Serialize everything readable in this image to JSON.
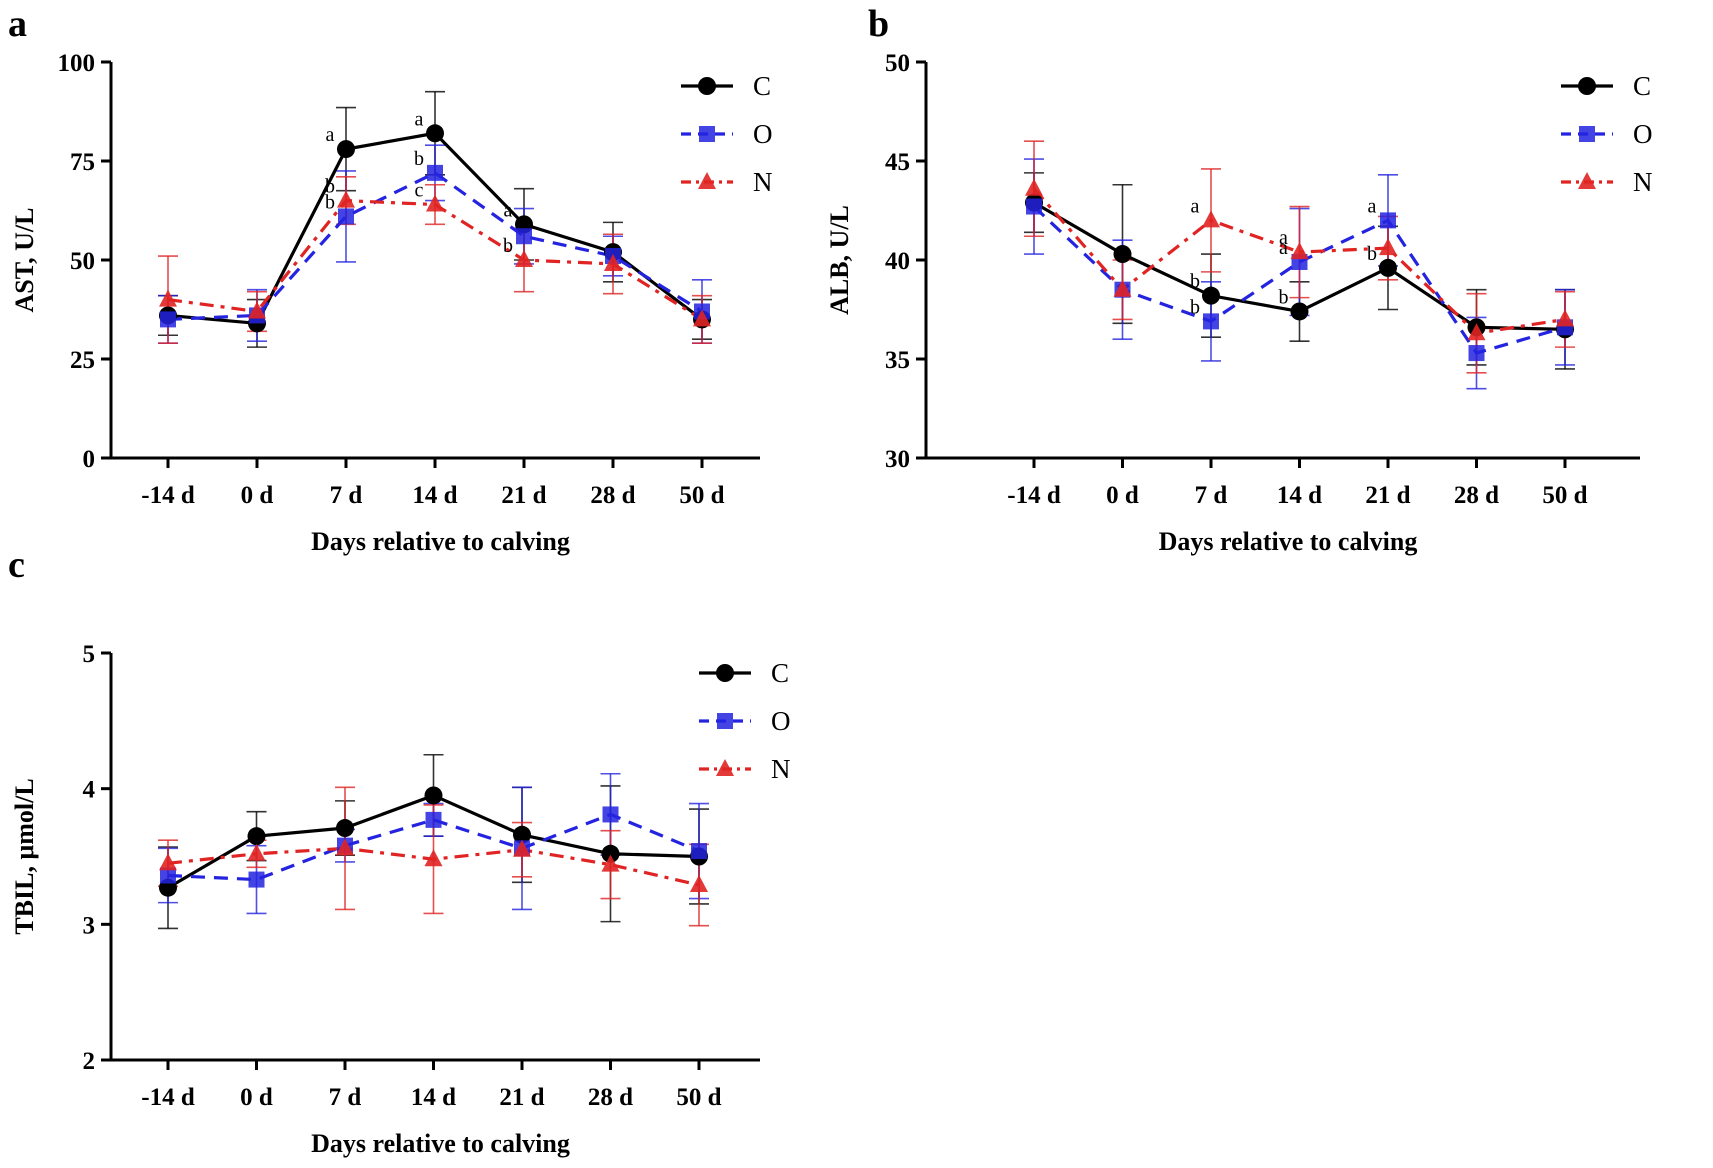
{
  "chart_data": [
    {
      "panel": "a",
      "type": "line",
      "title": "",
      "xlabel": "Days relative to calving",
      "ylabel": "AST, U/L",
      "categories": [
        "-14 d",
        "0 d",
        "7 d",
        "14 d",
        "21 d",
        "28 d",
        "50 d"
      ],
      "ylim": [
        0,
        100
      ],
      "yticks": [
        0,
        25,
        50,
        75,
        100
      ],
      "grid": false,
      "legend": "top-right",
      "series": [
        {
          "name": "C",
          "color": "#000000",
          "dash": "solid",
          "marker": "circle",
          "values": [
            36,
            34,
            78,
            82,
            59,
            52,
            35
          ],
          "errors": [
            5,
            6,
            10.5,
            10.5,
            9,
            7.5,
            5
          ]
        },
        {
          "name": "O",
          "color": "#2323e0",
          "dash": "dash",
          "marker": "square",
          "values": [
            35,
            36,
            61,
            72,
            56,
            51,
            37
          ],
          "errors": [
            6,
            6.5,
            11.5,
            7,
            7,
            5,
            8
          ]
        },
        {
          "name": "N",
          "color": "#e02323",
          "dash": "dashdot",
          "marker": "triangle",
          "values": [
            40,
            37,
            65,
            64,
            50,
            49,
            35
          ],
          "errors": [
            11,
            5,
            6,
            5,
            8,
            7.5,
            6
          ]
        }
      ],
      "annotations": [
        {
          "text": "a",
          "x": 2,
          "y": 78,
          "series": "C"
        },
        {
          "text": "b",
          "x": 2,
          "y": 65,
          "series": "N"
        },
        {
          "text": "b",
          "x": 2,
          "y": 61,
          "series": "O"
        },
        {
          "text": "a",
          "x": 3,
          "y": 82,
          "series": "C"
        },
        {
          "text": "b",
          "x": 3,
          "y": 72,
          "series": "O"
        },
        {
          "text": "c",
          "x": 3,
          "y": 64,
          "series": "N"
        },
        {
          "text": "a",
          "x": 4,
          "y": 59,
          "series": "C"
        },
        {
          "text": "b",
          "x": 4,
          "y": 50,
          "series": "N"
        }
      ]
    },
    {
      "panel": "b",
      "type": "line",
      "title": "",
      "xlabel": "Days relative to calving",
      "ylabel": "ALB, U/L",
      "categories": [
        "-14 d",
        "0 d",
        "7 d",
        "14 d",
        "21 d",
        "28 d",
        "50 d"
      ],
      "ylim": [
        30,
        50
      ],
      "yticks": [
        30,
        35,
        40,
        45,
        50
      ],
      "grid": false,
      "legend": "top-right",
      "series": [
        {
          "name": "C",
          "color": "#000000",
          "dash": "solid",
          "marker": "circle",
          "values": [
            42.9,
            40.3,
            38.2,
            37.4,
            39.6,
            36.6,
            36.5
          ],
          "errors": [
            1.5,
            3.5,
            2.1,
            1.5,
            2.1,
            1.9,
            2.0
          ]
        },
        {
          "name": "O",
          "color": "#2323e0",
          "dash": "dash",
          "marker": "square",
          "values": [
            42.7,
            38.5,
            36.9,
            39.9,
            42.0,
            35.3,
            36.6
          ],
          "errors": [
            2.4,
            2.5,
            2.0,
            2.7,
            2.3,
            1.8,
            1.9
          ]
        },
        {
          "name": "N",
          "color": "#e02323",
          "dash": "dashdot",
          "marker": "triangle",
          "values": [
            43.6,
            38.5,
            42.0,
            40.4,
            40.6,
            36.3,
            37.0
          ],
          "errors": [
            2.4,
            1.5,
            2.6,
            2.3,
            1.6,
            2.0,
            1.4
          ]
        }
      ],
      "annotations": [
        {
          "text": "a",
          "x": 2,
          "y": 42.0,
          "series": "N"
        },
        {
          "text": "b",
          "x": 2,
          "y": 38.2,
          "series": "C"
        },
        {
          "text": "b",
          "x": 2,
          "y": 36.9,
          "series": "O"
        },
        {
          "text": "a",
          "x": 3,
          "y": 40.4,
          "series": "N"
        },
        {
          "text": "a",
          "x": 3,
          "y": 39.9,
          "series": "O"
        },
        {
          "text": "b",
          "x": 3,
          "y": 37.4,
          "series": "C"
        },
        {
          "text": "a",
          "x": 4,
          "y": 42.0,
          "series": "O"
        },
        {
          "text": "b",
          "x": 4,
          "y": 39.6,
          "series": "C"
        }
      ]
    },
    {
      "panel": "c",
      "type": "line",
      "title": "",
      "xlabel": "Days relative to calving",
      "ylabel": "TBIL, μmol/L",
      "categories": [
        "-14 d",
        "0 d",
        "7 d",
        "14 d",
        "21 d",
        "28 d",
        "50 d"
      ],
      "ylim": [
        2,
        5
      ],
      "yticks": [
        2,
        3,
        4,
        5
      ],
      "grid": false,
      "legend": "top-right",
      "series": [
        {
          "name": "C",
          "color": "#000000",
          "dash": "solid",
          "marker": "circle",
          "values": [
            3.27,
            3.65,
            3.71,
            3.95,
            3.66,
            3.52,
            3.5
          ],
          "errors": [
            0.3,
            0.18,
            0.2,
            0.3,
            0.35,
            0.5,
            0.35
          ]
        },
        {
          "name": "O",
          "color": "#2323e0",
          "dash": "dash",
          "marker": "square",
          "values": [
            3.36,
            3.33,
            3.58,
            3.77,
            3.56,
            3.81,
            3.54
          ],
          "errors": [
            0.2,
            0.25,
            0.12,
            0.12,
            0.45,
            0.3,
            0.35
          ]
        },
        {
          "name": "N",
          "color": "#e02323",
          "dash": "dashdot",
          "marker": "triangle",
          "values": [
            3.45,
            3.52,
            3.56,
            3.48,
            3.55,
            3.44,
            3.29
          ],
          "errors": [
            0.17,
            0.1,
            0.45,
            0.4,
            0.2,
            0.25,
            0.3
          ]
        }
      ],
      "annotations": []
    }
  ]
}
